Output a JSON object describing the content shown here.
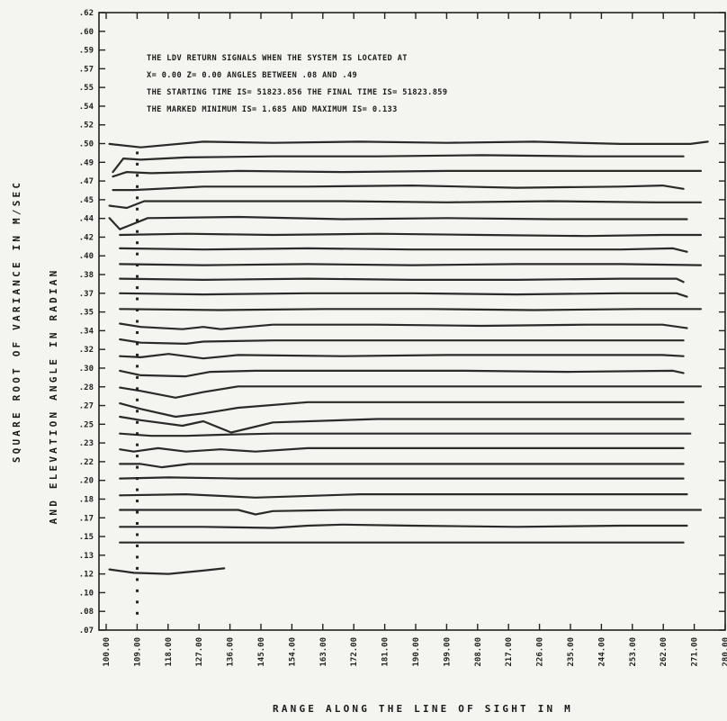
{
  "chart_data": {
    "type": "line",
    "info_lines": [
      "THE LDV RETURN SIGNALS WHEN THE SYSTEM IS LOCATED AT",
      "X=   0.00  Z=    0.00  ANGLES BETWEEN      .08  AND      .49",
      "THE STARTING TIME IS= 51823.856  THE FINAL TIME IS= 51823.859",
      "THE MARKED MINIMUM IS=       1.685  AND MAXIMUM IS=        0.133"
    ],
    "xlabel": "RANGE ALONG THE LINE OF SIGHT IN M",
    "ylabel_line1": "SQUARE ROOT OF VARIANCE IN M/SEC",
    "ylabel_line2": "AND ELEVATION ANGLE IN RADIAN",
    "xlim": [
      100,
      280
    ],
    "ylim": [
      0.07,
      0.62
    ],
    "x_ticks": [
      "100.00",
      "109.00",
      "118.00",
      "127.00",
      "136.00",
      "145.00",
      "154.00",
      "163.00",
      "172.00",
      "181.00",
      "190.00",
      "199.00",
      "208.00",
      "217.00",
      "226.00",
      "235.00",
      "244.00",
      "253.00",
      "262.00",
      "271.00",
      "280.00"
    ],
    "y_ticks": [
      ".62",
      ".60",
      ".59",
      ".57",
      ".55",
      ".54",
      ".52",
      ".50",
      ".49",
      ".47",
      ".45",
      ".44",
      ".42",
      ".40",
      ".38",
      ".37",
      ".35",
      ".34",
      ".32",
      ".30",
      ".28",
      ".27",
      ".25",
      ".23",
      ".22",
      ".20",
      ".18",
      ".17",
      ".15",
      ".13",
      ".12",
      ".10",
      ".08",
      ".07"
    ],
    "marked_range_x": 111,
    "marked_points_y": [
      0.495,
      0.485,
      0.475,
      0.465,
      0.455,
      0.445,
      0.435,
      0.425,
      0.415,
      0.405,
      0.395,
      0.385,
      0.375,
      0.365,
      0.355,
      0.345,
      0.335,
      0.325,
      0.315,
      0.305,
      0.295,
      0.285,
      0.275,
      0.265,
      0.255,
      0.245,
      0.235,
      0.225,
      0.215,
      0.205,
      0.195,
      0.185,
      0.175,
      0.165,
      0.155,
      0.145,
      0.135,
      0.125,
      0.115,
      0.105,
      0.095,
      0.085
    ],
    "series": [
      {
        "x": [
          103,
          112,
          130,
          150,
          175,
          200,
          225,
          250,
          270,
          275
        ],
        "y": [
          0.503,
          0.5,
          0.505,
          0.504,
          0.505,
          0.504,
          0.505,
          0.503,
          0.503,
          0.505
        ]
      },
      {
        "x": [
          104,
          107,
          112,
          125,
          150,
          180,
          210,
          240,
          268
        ],
        "y": [
          0.478,
          0.49,
          0.489,
          0.491,
          0.492,
          0.492,
          0.493,
          0.492,
          0.492
        ]
      },
      {
        "x": [
          104,
          108,
          115,
          140,
          170,
          200,
          230,
          258,
          273
        ],
        "y": [
          0.474,
          0.478,
          0.477,
          0.479,
          0.478,
          0.479,
          0.479,
          0.479,
          0.479
        ]
      },
      {
        "x": [
          104,
          110,
          130,
          160,
          190,
          220,
          250,
          262,
          268
        ],
        "y": [
          0.462,
          0.462,
          0.465,
          0.465,
          0.466,
          0.464,
          0.465,
          0.466,
          0.463
        ]
      },
      {
        "x": [
          103,
          108,
          113,
          140,
          170,
          200,
          230,
          260,
          273
        ],
        "y": [
          0.448,
          0.446,
          0.452,
          0.452,
          0.452,
          0.451,
          0.452,
          0.451,
          0.451
        ]
      },
      {
        "x": [
          103,
          106,
          110,
          114,
          140,
          170,
          200,
          230,
          260,
          269
        ],
        "y": [
          0.437,
          0.427,
          0.432,
          0.437,
          0.438,
          0.436,
          0.437,
          0.436,
          0.436,
          0.436
        ]
      },
      {
        "x": [
          106,
          125,
          150,
          180,
          210,
          240,
          262,
          273
        ],
        "y": [
          0.422,
          0.423,
          0.422,
          0.423,
          0.422,
          0.421,
          0.422,
          0.422
        ]
      },
      {
        "x": [
          106,
          130,
          160,
          190,
          220,
          250,
          265,
          269
        ],
        "y": [
          0.41,
          0.409,
          0.41,
          0.409,
          0.409,
          0.409,
          0.41,
          0.407
        ]
      },
      {
        "x": [
          106,
          130,
          160,
          190,
          220,
          250,
          273
        ],
        "y": [
          0.396,
          0.395,
          0.396,
          0.395,
          0.396,
          0.396,
          0.395
        ]
      },
      {
        "x": [
          106,
          130,
          160,
          190,
          220,
          250,
          266,
          268
        ],
        "y": [
          0.383,
          0.382,
          0.383,
          0.382,
          0.382,
          0.383,
          0.383,
          0.38
        ]
      },
      {
        "x": [
          106,
          130,
          160,
          190,
          220,
          250,
          266,
          269
        ],
        "y": [
          0.37,
          0.369,
          0.37,
          0.37,
          0.369,
          0.37,
          0.37,
          0.367
        ]
      },
      {
        "x": [
          106,
          135,
          165,
          195,
          225,
          255,
          273
        ],
        "y": [
          0.356,
          0.355,
          0.356,
          0.356,
          0.355,
          0.356,
          0.356
        ]
      },
      {
        "x": [
          106,
          112,
          124,
          130,
          135,
          150,
          180,
          210,
          240,
          262,
          269
        ],
        "y": [
          0.343,
          0.34,
          0.338,
          0.34,
          0.338,
          0.342,
          0.342,
          0.341,
          0.342,
          0.342,
          0.339
        ]
      },
      {
        "x": [
          106,
          112,
          125,
          130,
          150,
          180,
          210,
          240,
          268
        ],
        "y": [
          0.329,
          0.326,
          0.325,
          0.327,
          0.328,
          0.328,
          0.328,
          0.328,
          0.328
        ]
      },
      {
        "x": [
          106,
          112,
          120,
          130,
          140,
          170,
          200,
          230,
          262,
          268
        ],
        "y": [
          0.314,
          0.313,
          0.316,
          0.312,
          0.315,
          0.314,
          0.315,
          0.315,
          0.315,
          0.314
        ]
      },
      {
        "x": [
          106,
          112,
          125,
          132,
          145,
          175,
          205,
          235,
          265,
          268
        ],
        "y": [
          0.301,
          0.297,
          0.296,
          0.3,
          0.301,
          0.301,
          0.301,
          0.3,
          0.301,
          0.299
        ]
      },
      {
        "x": [
          106,
          112,
          122,
          130,
          140,
          165,
          195,
          225,
          255,
          273
        ],
        "y": [
          0.286,
          0.283,
          0.277,
          0.282,
          0.287,
          0.287,
          0.287,
          0.287,
          0.287,
          0.287
        ]
      },
      {
        "x": [
          106,
          112,
          122,
          130,
          140,
          160,
          190,
          220,
          250,
          268
        ],
        "y": [
          0.272,
          0.267,
          0.26,
          0.263,
          0.268,
          0.273,
          0.273,
          0.273,
          0.273,
          0.273
        ]
      },
      {
        "x": [
          106,
          112,
          124,
          130,
          138,
          150,
          180,
          210,
          240,
          268
        ],
        "y": [
          0.26,
          0.257,
          0.252,
          0.256,
          0.246,
          0.255,
          0.258,
          0.258,
          0.258,
          0.258
        ]
      },
      {
        "x": [
          106,
          115,
          125,
          135,
          150,
          180,
          210,
          240,
          270
        ],
        "y": [
          0.245,
          0.243,
          0.243,
          0.244,
          0.245,
          0.245,
          0.245,
          0.245,
          0.245
        ]
      },
      {
        "x": [
          106,
          110,
          117,
          125,
          135,
          145,
          160,
          190,
          220,
          250,
          268
        ],
        "y": [
          0.231,
          0.229,
          0.232,
          0.229,
          0.231,
          0.229,
          0.232,
          0.232,
          0.232,
          0.232,
          0.232
        ]
      },
      {
        "x": [
          106,
          112,
          118,
          126,
          140,
          170,
          200,
          230,
          260,
          268
        ],
        "y": [
          0.218,
          0.218,
          0.215,
          0.218,
          0.218,
          0.218,
          0.218,
          0.218,
          0.218,
          0.218
        ]
      },
      {
        "x": [
          106,
          120,
          140,
          170,
          200,
          230,
          260,
          268
        ],
        "y": [
          0.205,
          0.206,
          0.205,
          0.205,
          0.205,
          0.205,
          0.205,
          0.205
        ]
      },
      {
        "x": [
          106,
          125,
          145,
          175,
          205,
          235,
          262,
          269
        ],
        "y": [
          0.19,
          0.191,
          0.188,
          0.191,
          0.191,
          0.191,
          0.191,
          0.191
        ]
      },
      {
        "x": [
          106,
          140,
          145,
          150,
          170,
          200,
          230,
          260,
          273
        ],
        "y": [
          0.177,
          0.177,
          0.173,
          0.176,
          0.177,
          0.177,
          0.177,
          0.177,
          0.177
        ]
      },
      {
        "x": [
          106,
          130,
          150,
          160,
          170,
          190,
          220,
          250,
          269
        ],
        "y": [
          0.162,
          0.162,
          0.161,
          0.163,
          0.164,
          0.163,
          0.162,
          0.163,
          0.163
        ]
      },
      {
        "x": [
          106,
          130,
          155,
          185,
          215,
          245,
          268
        ],
        "y": [
          0.148,
          0.148,
          0.148,
          0.148,
          0.148,
          0.148,
          0.148
        ]
      },
      {
        "x": [
          103,
          110,
          120,
          130,
          136
        ],
        "y": [
          0.124,
          0.121,
          0.12,
          0.123,
          0.125
        ]
      }
    ]
  }
}
